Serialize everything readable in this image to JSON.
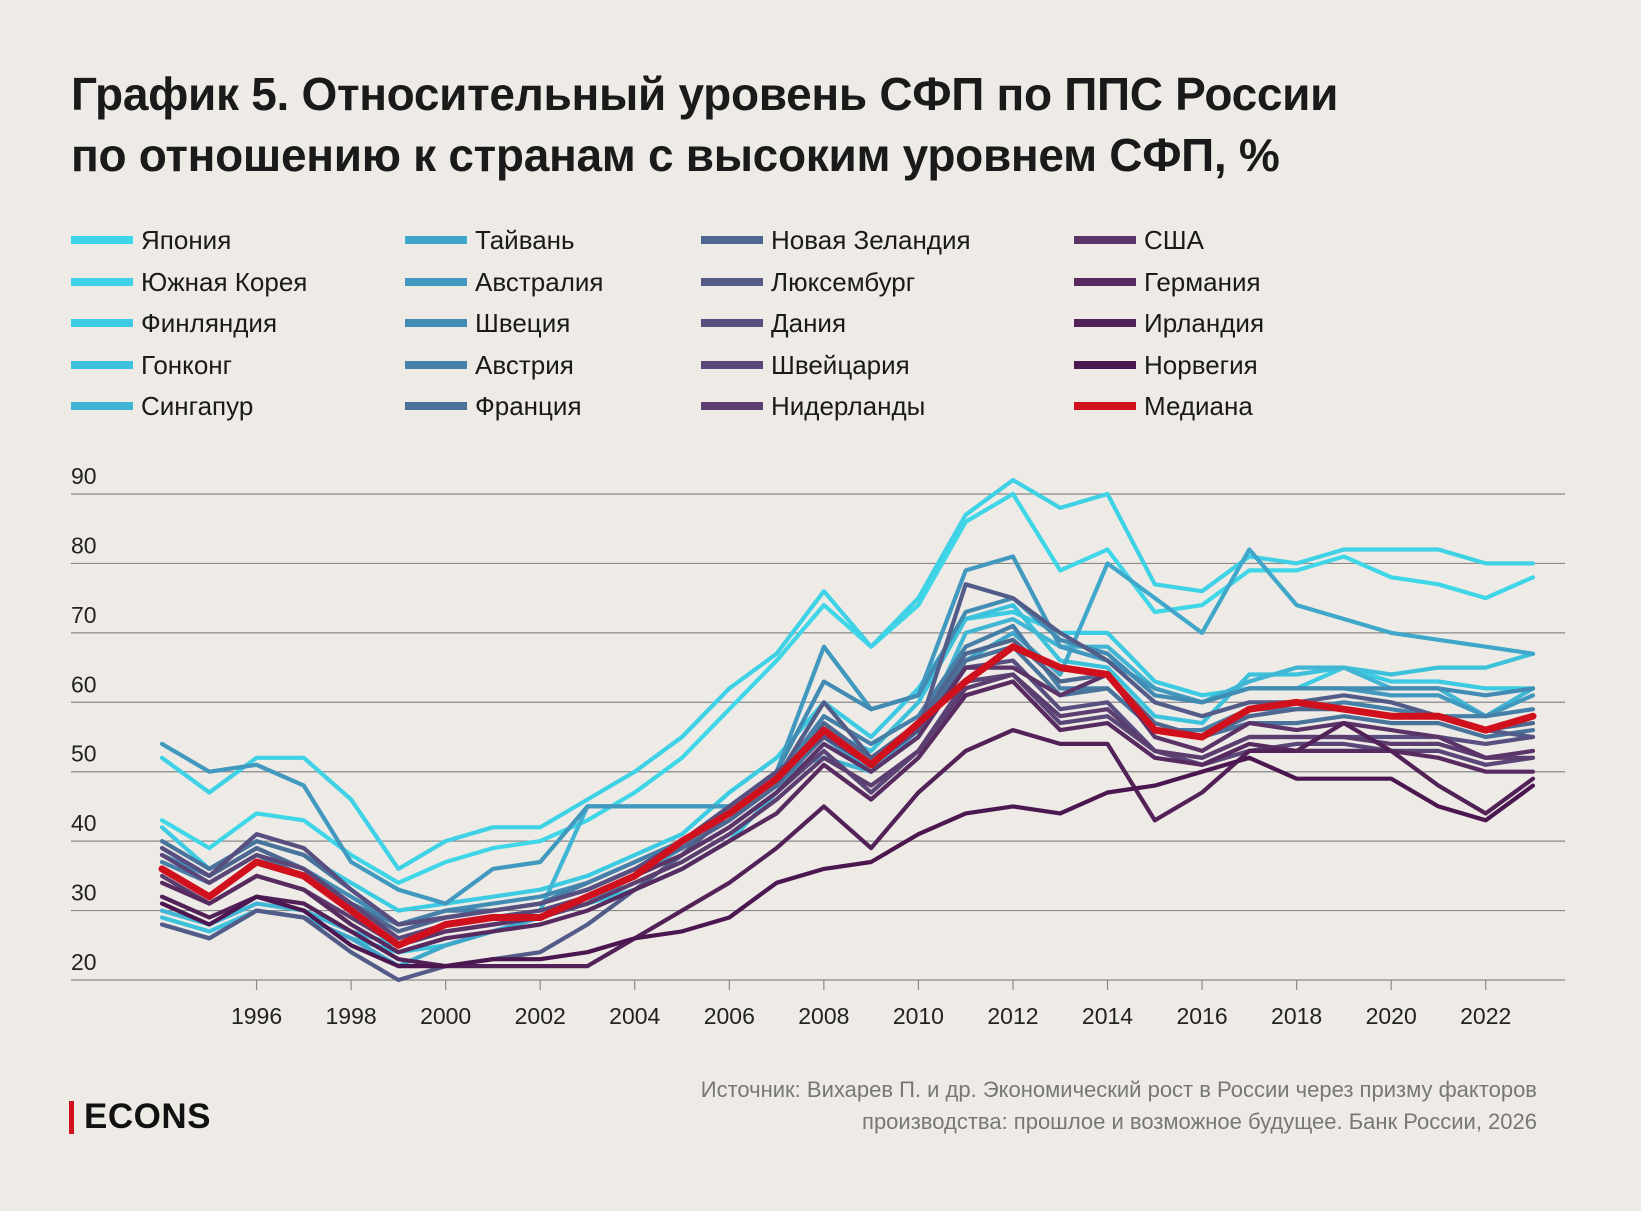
{
  "title": {
    "line1": "График 5. Относительный уровень СФП по ППС России",
    "line2": "по отношению к странам с высоким уровнем СФП, %"
  },
  "source": {
    "line1": "Источник: Вихарев П. и др. Экономический рост в России через призму факторов",
    "line2": "производства: прошлое и возможное будущее. Банк России, 2026"
  },
  "brand": "ECONS",
  "colors": {
    "background": "#eeebe6",
    "median": "#d0101c",
    "grid": "#8a8a8a",
    "brand_bar": "#d0101c"
  },
  "chart_data": {
    "type": "line",
    "title": "",
    "xlabel": "",
    "ylabel": "",
    "ylim": [
      20,
      90
    ],
    "yticks": [
      20,
      30,
      40,
      50,
      60,
      70,
      80,
      90
    ],
    "xticks": [
      1996,
      1998,
      2000,
      2002,
      2004,
      2006,
      2008,
      2010,
      2012,
      2014,
      2016,
      2018,
      2020,
      2022
    ],
    "grid": "horizontal",
    "legend_position": "top",
    "x": [
      1994,
      1995,
      1996,
      1997,
      1998,
      1999,
      2000,
      2001,
      2002,
      2003,
      2004,
      2005,
      2006,
      2007,
      2008,
      2009,
      2010,
      2011,
      2012,
      2013,
      2014,
      2015,
      2016,
      2017,
      2018,
      2019,
      2020,
      2021,
      2022,
      2023
    ],
    "series": [
      {
        "name": "Япония",
        "color": "#3fd6e8",
        "values": [
          43,
          39,
          44,
          43,
          38,
          34,
          37,
          39,
          40,
          43,
          47,
          52,
          59,
          66,
          74,
          68,
          74,
          86,
          90,
          79,
          82,
          73,
          74,
          79,
          79,
          81,
          78,
          77,
          75,
          78
        ]
      },
      {
        "name": "Южная Корея",
        "color": "#3fd1e6",
        "values": [
          52,
          47,
          52,
          52,
          46,
          36,
          40,
          42,
          42,
          46,
          50,
          55,
          62,
          67,
          76,
          68,
          75,
          87,
          92,
          88,
          90,
          77,
          76,
          81,
          80,
          82,
          82,
          82,
          80,
          80
        ]
      },
      {
        "name": "Финляндия",
        "color": "#3ccbe3",
        "values": [
          42,
          36,
          40,
          38,
          34,
          30,
          31,
          32,
          33,
          35,
          38,
          41,
          47,
          52,
          60,
          55,
          62,
          72,
          73,
          70,
          70,
          63,
          61,
          62,
          62,
          65,
          63,
          63,
          62,
          62
        ]
      },
      {
        "name": "Гонконг",
        "color": "#3dc2dc",
        "values": [
          29,
          27,
          30,
          29,
          26,
          24,
          25,
          27,
          29,
          31,
          33,
          36,
          40,
          47,
          56,
          53,
          60,
          72,
          74,
          66,
          65,
          58,
          57,
          64,
          64,
          65,
          64,
          65,
          65,
          67
        ]
      },
      {
        "name": "Сингапур",
        "color": "#40b5d4",
        "values": [
          30,
          28,
          31,
          30,
          27,
          25,
          28,
          29,
          30,
          45,
          45,
          45,
          45,
          50,
          52,
          50,
          55,
          70,
          72,
          68,
          68,
          62,
          60,
          63,
          65,
          65,
          62,
          62,
          58,
          62
        ]
      },
      {
        "name": "Тайвань",
        "color": "#3fa7ca",
        "values": [
          28,
          26,
          30,
          29,
          26,
          22,
          25,
          27,
          29,
          31,
          35,
          39,
          44,
          49,
          55,
          50,
          56,
          66,
          70,
          64,
          80,
          75,
          70,
          82,
          74,
          72,
          70,
          69,
          68,
          67
        ]
      },
      {
        "name": "Австралия",
        "color": "#4199bf",
        "values": [
          54,
          50,
          51,
          48,
          37,
          33,
          31,
          36,
          37,
          45,
          45,
          45,
          45,
          50,
          68,
          59,
          61,
          79,
          81,
          68,
          66,
          62,
          60,
          62,
          62,
          62,
          61,
          61,
          58,
          61
        ]
      },
      {
        "name": "Швеция",
        "color": "#428cb4",
        "values": [
          38,
          35,
          39,
          36,
          32,
          28,
          30,
          31,
          32,
          34,
          37,
          40,
          45,
          50,
          63,
          59,
          61,
          73,
          75,
          69,
          67,
          61,
          60,
          62,
          62,
          62,
          62,
          62,
          61,
          62
        ]
      },
      {
        "name": "Австрия",
        "color": "#4680a8",
        "values": [
          37,
          34,
          38,
          35,
          31,
          28,
          30,
          30,
          31,
          34,
          37,
          40,
          44,
          49,
          58,
          54,
          58,
          68,
          71,
          62,
          62,
          56,
          56,
          59,
          59,
          60,
          59,
          58,
          58,
          59
        ]
      },
      {
        "name": "Франция",
        "color": "#4a739c",
        "values": [
          40,
          36,
          40,
          38,
          33,
          28,
          29,
          30,
          31,
          33,
          36,
          39,
          43,
          48,
          55,
          51,
          56,
          66,
          68,
          61,
          62,
          56,
          55,
          57,
          57,
          58,
          57,
          57,
          55,
          56
        ]
      },
      {
        "name": "Новая Зеландия",
        "color": "#4e6791",
        "values": [
          39,
          35,
          39,
          36,
          31,
          27,
          29,
          30,
          31,
          33,
          36,
          39,
          43,
          48,
          57,
          52,
          57,
          67,
          69,
          63,
          64,
          57,
          55,
          58,
          59,
          59,
          58,
          58,
          56,
          57
        ]
      },
      {
        "name": "Люксембург",
        "color": "#535c88",
        "values": [
          28,
          26,
          30,
          29,
          24,
          20,
          22,
          23,
          24,
          28,
          33,
          38,
          44,
          49,
          60,
          52,
          56,
          77,
          75,
          70,
          66,
          60,
          58,
          60,
          60,
          61,
          60,
          58,
          56,
          55
        ]
      },
      {
        "name": "Дания",
        "color": "#584f80",
        "values": [
          39,
          35,
          41,
          39,
          33,
          28,
          29,
          30,
          31,
          33,
          36,
          40,
          45,
          50,
          55,
          51,
          56,
          65,
          66,
          59,
          60,
          53,
          52,
          55,
          55,
          55,
          55,
          55,
          54,
          55
        ]
      },
      {
        "name": "Швейцария",
        "color": "#5a4678",
        "values": [
          38,
          34,
          38,
          36,
          31,
          26,
          28,
          29,
          30,
          32,
          35,
          38,
          42,
          47,
          53,
          47,
          53,
          63,
          64,
          57,
          58,
          53,
          51,
          53,
          54,
          54,
          53,
          53,
          51,
          52
        ]
      },
      {
        "name": "Нидерланды",
        "color": "#5b3d70",
        "values": [
          35,
          31,
          35,
          33,
          29,
          25,
          27,
          28,
          29,
          31,
          34,
          37,
          41,
          46,
          52,
          48,
          53,
          62,
          64,
          58,
          59,
          53,
          52,
          55,
          55,
          55,
          54,
          54,
          52,
          52
        ]
      },
      {
        "name": "США",
        "color": "#5a3368",
        "values": [
          36,
          32,
          37,
          35,
          30,
          25,
          27,
          28,
          29,
          32,
          35,
          38,
          42,
          47,
          54,
          50,
          55,
          65,
          65,
          61,
          64,
          55,
          53,
          57,
          56,
          57,
          56,
          55,
          52,
          53
        ]
      },
      {
        "name": "Германия",
        "color": "#572a60",
        "values": [
          34,
          31,
          35,
          33,
          28,
          24,
          26,
          27,
          28,
          30,
          33,
          36,
          40,
          44,
          51,
          46,
          52,
          61,
          63,
          56,
          57,
          52,
          51,
          54,
          53,
          53,
          53,
          52,
          50,
          50
        ]
      },
      {
        "name": "Ирландия",
        "color": "#522158",
        "values": [
          32,
          29,
          32,
          31,
          27,
          23,
          22,
          22,
          22,
          22,
          26,
          30,
          34,
          39,
          45,
          39,
          47,
          53,
          56,
          54,
          54,
          43,
          47,
          53,
          53,
          57,
          53,
          48,
          44,
          49
        ]
      },
      {
        "name": "Норвегия",
        "color": "#4c1750",
        "values": [
          31,
          28,
          32,
          30,
          25,
          22,
          22,
          23,
          23,
          24,
          26,
          27,
          29,
          34,
          36,
          37,
          41,
          44,
          45,
          44,
          47,
          48,
          50,
          52,
          49,
          49,
          49,
          45,
          43,
          48
        ]
      },
      {
        "name": "Медиана",
        "color": "#d0101c",
        "values": [
          36,
          32,
          37,
          35,
          30,
          25,
          28,
          29,
          29,
          32,
          35,
          40,
          44,
          49,
          56,
          51,
          57,
          63,
          68,
          65,
          64,
          56,
          55,
          59,
          60,
          59,
          58,
          58,
          56,
          58
        ]
      }
    ]
  }
}
